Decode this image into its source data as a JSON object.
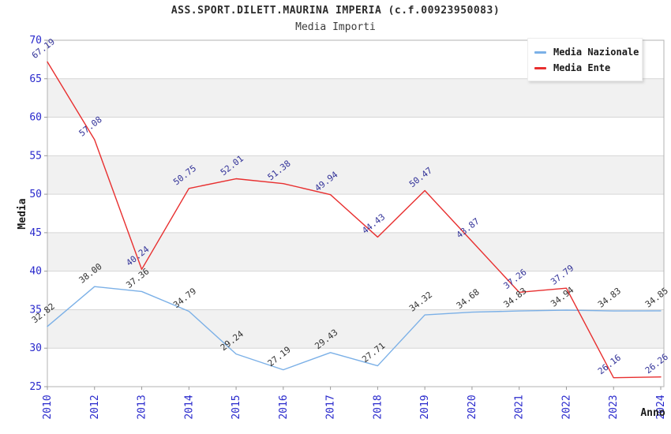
{
  "page": {
    "title": "ASS.SPORT.DILETT.MAURINA IMPERIA (c.f.00923950083)",
    "subtitle": "Media Importi"
  },
  "legend": {
    "items": [
      {
        "label": "Media Nazionale",
        "color": "#7bb0e7"
      },
      {
        "label": "Media Ente",
        "color": "#e82f2f"
      }
    ]
  },
  "chart_data": {
    "type": "line",
    "title": "ASS.SPORT.DILETT.MAURINA IMPERIA (c.f.00923950083)",
    "subtitle": "Media Importi",
    "xlabel": "Anno",
    "ylabel": "Media",
    "ylim": [
      25,
      70
    ],
    "ytick_step": 5,
    "grid": true,
    "band_fill": "alternating horizontal bands",
    "legend_position": "top-right",
    "categories": [
      "2010",
      "2012",
      "2013",
      "2014",
      "2015",
      "2016",
      "2017",
      "2018",
      "2019",
      "2020",
      "2021",
      "2022",
      "2023",
      "2024"
    ],
    "series": [
      {
        "name": "Media Nazionale",
        "color": "#7bb0e7",
        "label_color": "#333333",
        "values": [
          32.82,
          38.0,
          37.36,
          34.79,
          29.24,
          27.19,
          29.43,
          27.71,
          34.32,
          34.68,
          34.83,
          34.94,
          34.83,
          34.85
        ]
      },
      {
        "name": "Media Ente",
        "color": "#e82f2f",
        "label_color": "#333399",
        "values": [
          67.19,
          57.08,
          40.24,
          50.75,
          52.01,
          51.38,
          49.94,
          44.43,
          50.47,
          43.87,
          37.26,
          37.79,
          26.16,
          26.26
        ]
      }
    ]
  },
  "style": {
    "tick_label_color": "#2929cc",
    "axis_title_color": "#1a1a1a",
    "band_color": "#f1f1f1",
    "grid_color": "#d6d6d6",
    "border_color": "#b3b3b3",
    "tick_color": "#999999"
  }
}
